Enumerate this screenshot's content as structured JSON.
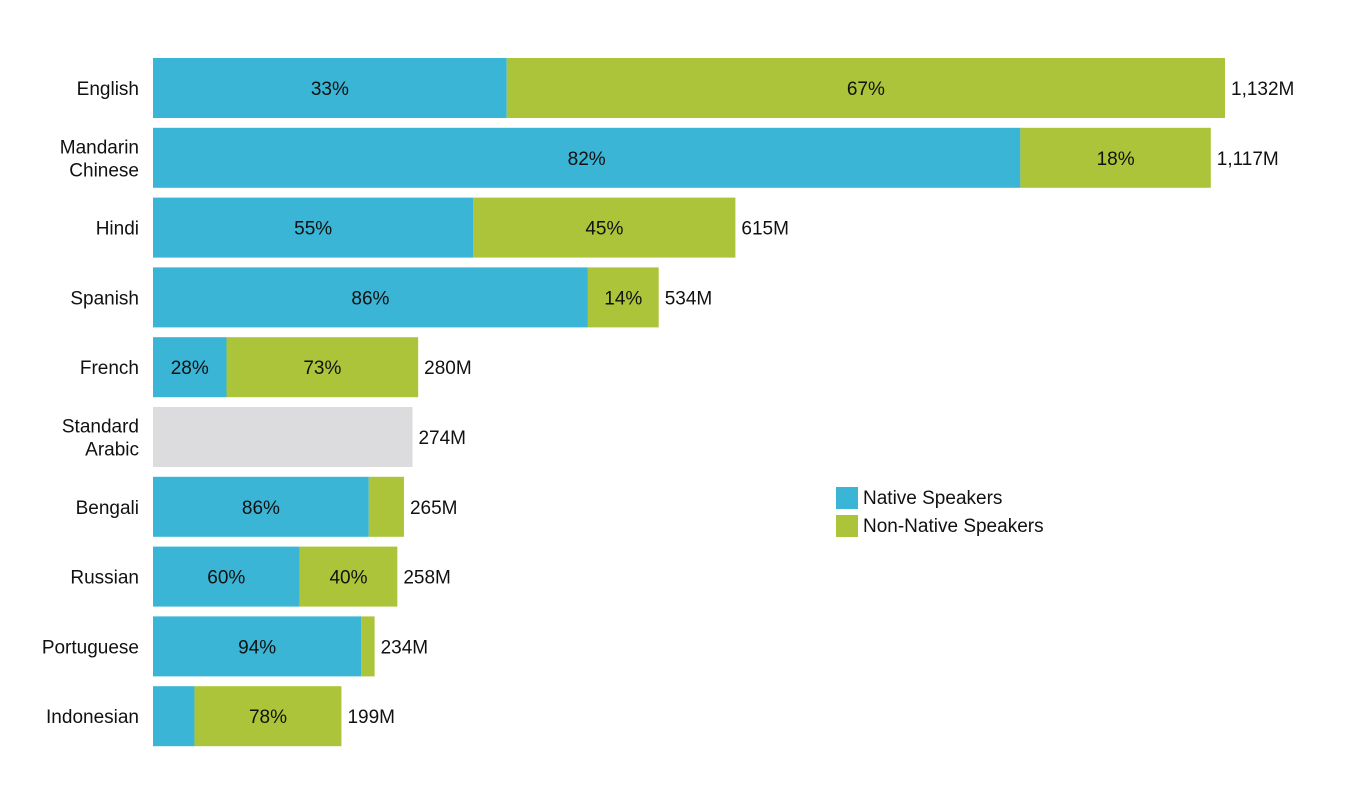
{
  "colors": {
    "native": "#3ab5d6",
    "non_native": "#abc43a",
    "unknown": "#dcdbdd"
  },
  "legend": {
    "items": [
      {
        "key": "native",
        "label": "Native Speakers"
      },
      {
        "key": "non_native",
        "label": "Non-Native Speakers"
      }
    ]
  },
  "chart_data": {
    "type": "bar",
    "orientation": "horizontal",
    "stacked": true,
    "unit": "millions of speakers",
    "xlim": [
      0,
      1132
    ],
    "grid": false,
    "legend_position": "right",
    "categories": [
      {
        "label_lines": [
          "English"
        ],
        "total": 1132,
        "total_label": "1,132M",
        "segments": [
          {
            "series": "native",
            "share": 33,
            "label": "33%"
          },
          {
            "series": "non_native",
            "share": 67,
            "label": "67%"
          }
        ]
      },
      {
        "label_lines": [
          "Mandarin",
          "Chinese"
        ],
        "total": 1117,
        "total_label": "1,117M",
        "segments": [
          {
            "series": "native",
            "share": 82,
            "label": "82%"
          },
          {
            "series": "non_native",
            "share": 18,
            "label": "18%"
          }
        ]
      },
      {
        "label_lines": [
          "Hindi"
        ],
        "total": 615,
        "total_label": "615M",
        "segments": [
          {
            "series": "native",
            "share": 55,
            "label": "55%"
          },
          {
            "series": "non_native",
            "share": 45,
            "label": "45%"
          }
        ]
      },
      {
        "label_lines": [
          "Spanish"
        ],
        "total": 534,
        "total_label": "534M",
        "segments": [
          {
            "series": "native",
            "share": 86,
            "label": "86%"
          },
          {
            "series": "non_native",
            "share": 14,
            "label": "14%"
          }
        ]
      },
      {
        "label_lines": [
          "French"
        ],
        "total": 280,
        "total_label": "280M",
        "segments": [
          {
            "series": "native",
            "share": 28,
            "label": "28%"
          },
          {
            "series": "non_native",
            "share": 73,
            "label": "73%"
          }
        ]
      },
      {
        "label_lines": [
          "Standard",
          "Arabic"
        ],
        "total": 274,
        "total_label": "274M",
        "segments": [
          {
            "series": "unknown",
            "share": 100,
            "label": ""
          }
        ]
      },
      {
        "label_lines": [
          "Bengali"
        ],
        "total": 265,
        "total_label": "265M",
        "segments": [
          {
            "series": "native",
            "share": 86,
            "label": "86%"
          },
          {
            "series": "non_native",
            "share": 14,
            "label": ""
          }
        ]
      },
      {
        "label_lines": [
          "Russian"
        ],
        "total": 258,
        "total_label": "258M",
        "segments": [
          {
            "series": "native",
            "share": 60,
            "label": "60%"
          },
          {
            "series": "non_native",
            "share": 40,
            "label": "40%"
          }
        ]
      },
      {
        "label_lines": [
          "Portuguese"
        ],
        "total": 234,
        "total_label": "234M",
        "segments": [
          {
            "series": "native",
            "share": 94,
            "label": "94%"
          },
          {
            "series": "non_native",
            "share": 6,
            "label": ""
          }
        ]
      },
      {
        "label_lines": [
          "Indonesian"
        ],
        "total": 199,
        "total_label": "199M",
        "segments": [
          {
            "series": "native",
            "share": 22,
            "label": ""
          },
          {
            "series": "non_native",
            "share": 78,
            "label": "78%"
          }
        ]
      }
    ]
  }
}
